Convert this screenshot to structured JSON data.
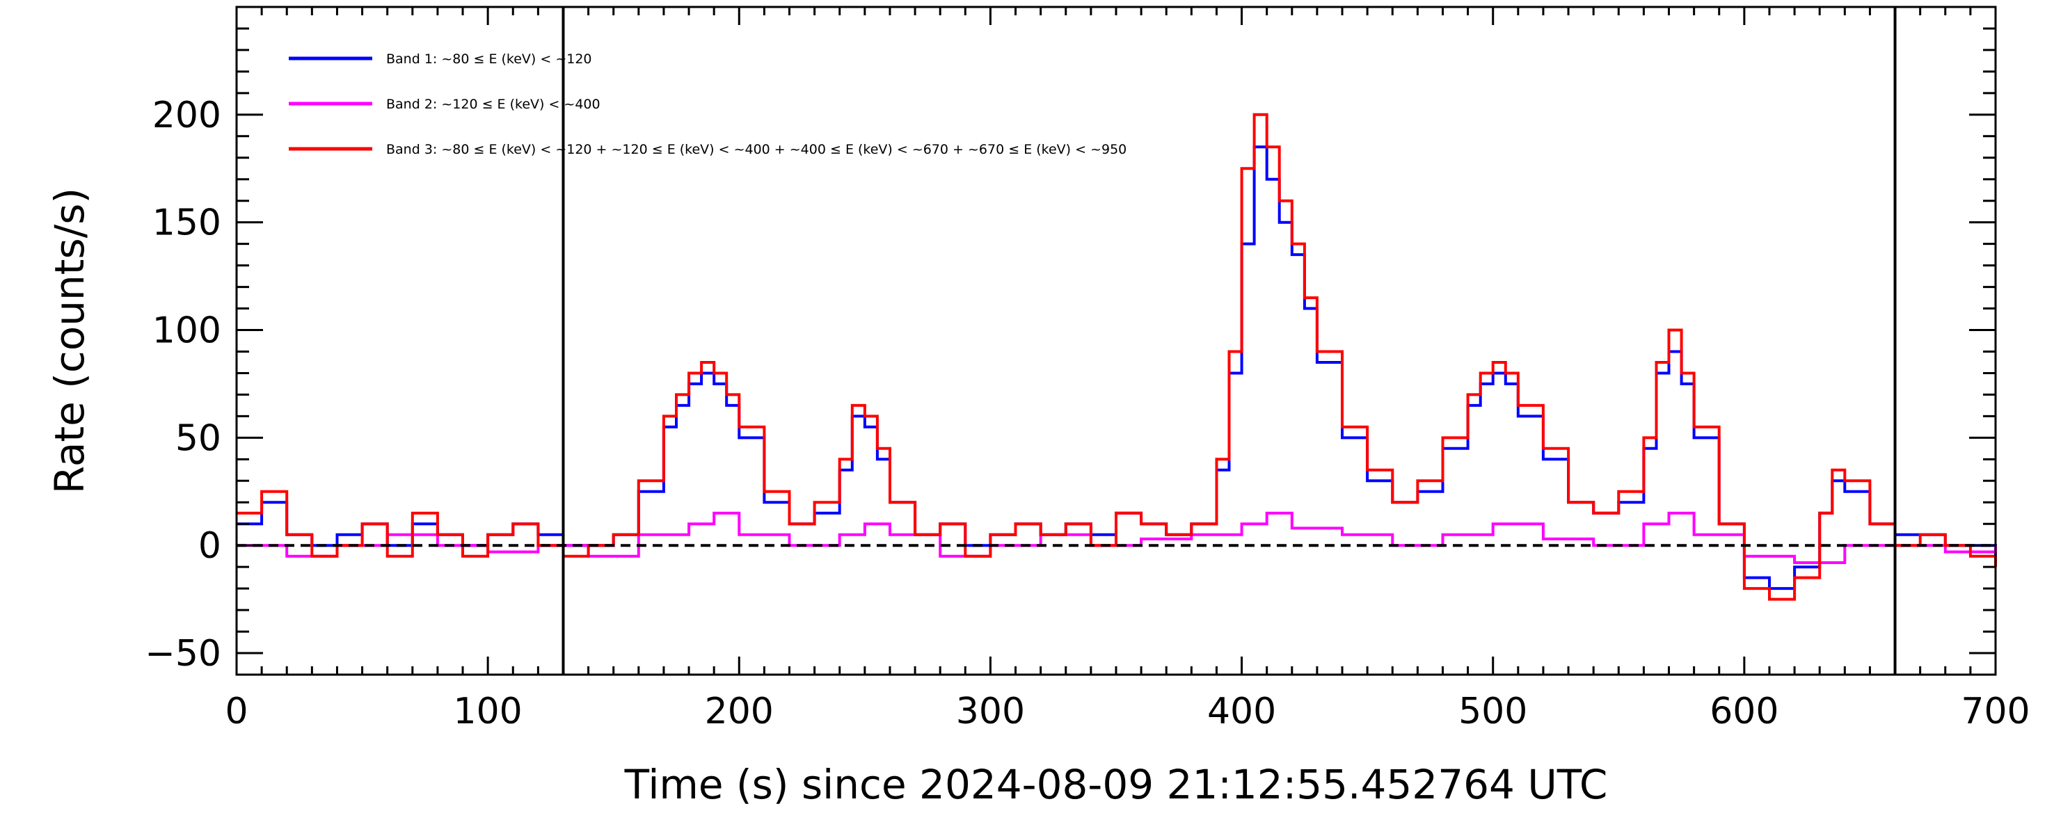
{
  "chart_data": {
    "type": "line",
    "xlabel": "Time (s) since 2024-08-09 21:12:55.452764 UTC",
    "ylabel": "Rate (counts/s)",
    "xlim": [
      0,
      700
    ],
    "ylim": [
      -60,
      250
    ],
    "xticks": [
      0,
      100,
      200,
      300,
      400,
      500,
      600,
      700
    ],
    "xtick_labels": [
      "0",
      "100",
      "200",
      "300",
      "400",
      "500",
      "600",
      "700"
    ],
    "yticks": [
      -50,
      0,
      50,
      100,
      150,
      200
    ],
    "ytick_labels": [
      "−50",
      "0",
      "50",
      "100",
      "150",
      "200"
    ],
    "grid": false,
    "legend_position": "top-left",
    "reference_lines": {
      "horizontal_dashed_y": 0,
      "vertical_x": [
        130,
        660
      ]
    },
    "series": [
      {
        "name": "Band 1: ~80 ≤ E (keV) < ~120",
        "color": "#0000ff",
        "x": [
          0,
          10,
          20,
          30,
          40,
          50,
          60,
          70,
          80,
          90,
          100,
          110,
          120,
          130,
          140,
          150,
          160,
          170,
          175,
          180,
          185,
          190,
          195,
          200,
          210,
          220,
          230,
          240,
          245,
          250,
          255,
          260,
          270,
          280,
          290,
          300,
          310,
          320,
          330,
          340,
          350,
          360,
          370,
          380,
          390,
          395,
          400,
          405,
          410,
          415,
          420,
          425,
          430,
          440,
          450,
          460,
          470,
          480,
          490,
          495,
          500,
          505,
          510,
          520,
          530,
          540,
          550,
          560,
          565,
          570,
          575,
          580,
          590,
          600,
          610,
          620,
          630,
          635,
          640,
          650,
          660,
          670,
          680,
          690,
          700
        ],
        "values": [
          10,
          20,
          5,
          0,
          5,
          10,
          0,
          10,
          5,
          0,
          5,
          10,
          5,
          0,
          0,
          5,
          25,
          55,
          65,
          75,
          80,
          75,
          65,
          50,
          20,
          10,
          15,
          35,
          60,
          55,
          40,
          20,
          5,
          10,
          0,
          5,
          10,
          5,
          10,
          5,
          15,
          10,
          5,
          10,
          35,
          80,
          140,
          185,
          170,
          150,
          135,
          110,
          85,
          50,
          30,
          20,
          25,
          45,
          65,
          75,
          80,
          75,
          60,
          40,
          20,
          15,
          20,
          45,
          80,
          90,
          75,
          50,
          10,
          -15,
          -20,
          -10,
          15,
          30,
          25,
          10,
          5,
          5,
          0,
          0,
          -5
        ]
      },
      {
        "name": "Band 2: ~120 ≤ E (keV) < ~400",
        "color": "#ff00ff",
        "x": [
          0,
          20,
          40,
          60,
          80,
          100,
          120,
          140,
          160,
          180,
          190,
          200,
          220,
          240,
          250,
          260,
          280,
          300,
          320,
          340,
          360,
          380,
          400,
          410,
          420,
          440,
          460,
          480,
          500,
          520,
          540,
          560,
          570,
          580,
          600,
          620,
          640,
          660,
          680,
          700
        ],
        "values": [
          0,
          -5,
          0,
          5,
          0,
          -3,
          0,
          -5,
          5,
          10,
          15,
          5,
          0,
          5,
          10,
          5,
          -5,
          0,
          5,
          0,
          3,
          5,
          10,
          15,
          8,
          5,
          0,
          5,
          10,
          3,
          0,
          10,
          15,
          5,
          -5,
          -8,
          0,
          0,
          -3,
          0
        ]
      },
      {
        "name": "Band 3: ~80 ≤ E (keV) < ~120 + ~120 ≤ E (keV) < ~400 + ~400 ≤ E (keV) < ~670 + ~670 ≤ E (keV) < ~950",
        "color": "#ff0000",
        "x": [
          0,
          10,
          20,
          30,
          40,
          50,
          60,
          70,
          80,
          90,
          100,
          110,
          120,
          130,
          140,
          150,
          160,
          170,
          175,
          180,
          185,
          190,
          195,
          200,
          210,
          220,
          230,
          240,
          245,
          250,
          255,
          260,
          270,
          280,
          290,
          300,
          310,
          320,
          330,
          340,
          350,
          360,
          370,
          380,
          390,
          395,
          400,
          405,
          410,
          415,
          420,
          425,
          430,
          440,
          450,
          460,
          470,
          480,
          490,
          495,
          500,
          505,
          510,
          520,
          530,
          540,
          550,
          560,
          565,
          570,
          575,
          580,
          590,
          600,
          610,
          620,
          630,
          635,
          640,
          650,
          660,
          670,
          680,
          690,
          700
        ],
        "values": [
          15,
          25,
          5,
          -5,
          0,
          10,
          -5,
          15,
          5,
          -5,
          5,
          10,
          0,
          -5,
          0,
          5,
          30,
          60,
          70,
          80,
          85,
          80,
          70,
          55,
          25,
          10,
          20,
          40,
          65,
          60,
          45,
          20,
          5,
          10,
          -5,
          5,
          10,
          5,
          10,
          0,
          15,
          10,
          5,
          10,
          40,
          90,
          175,
          200,
          185,
          160,
          140,
          115,
          90,
          55,
          35,
          20,
          30,
          50,
          70,
          80,
          85,
          80,
          65,
          45,
          20,
          15,
          25,
          50,
          85,
          100,
          80,
          55,
          10,
          -20,
          -25,
          -15,
          15,
          35,
          30,
          10,
          0,
          5,
          0,
          -5,
          -10
        ]
      }
    ]
  }
}
